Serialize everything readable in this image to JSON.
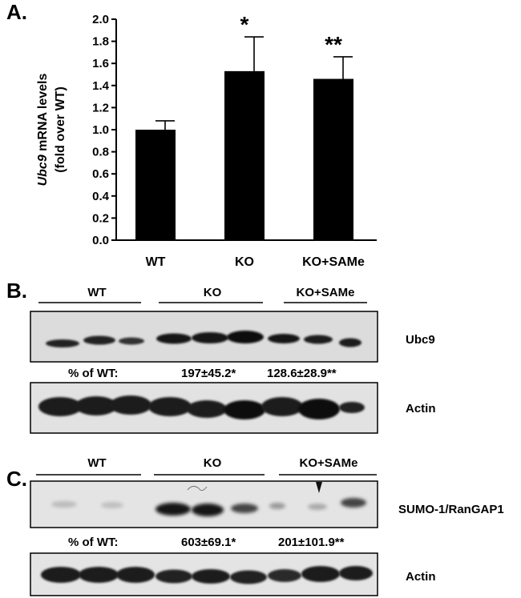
{
  "panels": {
    "a": "A.",
    "b": "B.",
    "c": "C."
  },
  "chart_data": {
    "type": "bar",
    "categories": [
      "WT",
      "KO",
      "KO+SAMe"
    ],
    "values": [
      1.0,
      1.53,
      1.46
    ],
    "errors": [
      0.08,
      0.31,
      0.2
    ],
    "significance": [
      "",
      "*",
      "**"
    ],
    "ylabel_italic": "Ubc9",
    "ylabel_rest": " mRNA levels",
    "ylabel_line2": "(fold over WT)",
    "ylim": [
      0,
      2.0
    ],
    "yticks": [
      "0.0",
      "0.2",
      "0.4",
      "0.6",
      "0.8",
      "1.0",
      "1.2",
      "1.4",
      "1.6",
      "1.8",
      "2.0"
    ],
    "grid": false,
    "colors": {
      "bar": "#000000"
    }
  },
  "blot_b": {
    "groups": [
      "WT",
      "KO",
      "KO+SAMe"
    ],
    "band1_label": "Ubc9",
    "pct_label": "% of WT:",
    "pct_values": [
      "197±45.2*",
      "128.6±28.9**"
    ],
    "band2_label": "Actin"
  },
  "blot_c": {
    "groups": [
      "WT",
      "KO",
      "KO+SAMe"
    ],
    "band1_label": "SUMO-1/RanGAP1",
    "pct_label": "% of WT:",
    "pct_values": [
      "603±69.1*",
      "201±101.9**"
    ],
    "band2_label": "Actin"
  }
}
